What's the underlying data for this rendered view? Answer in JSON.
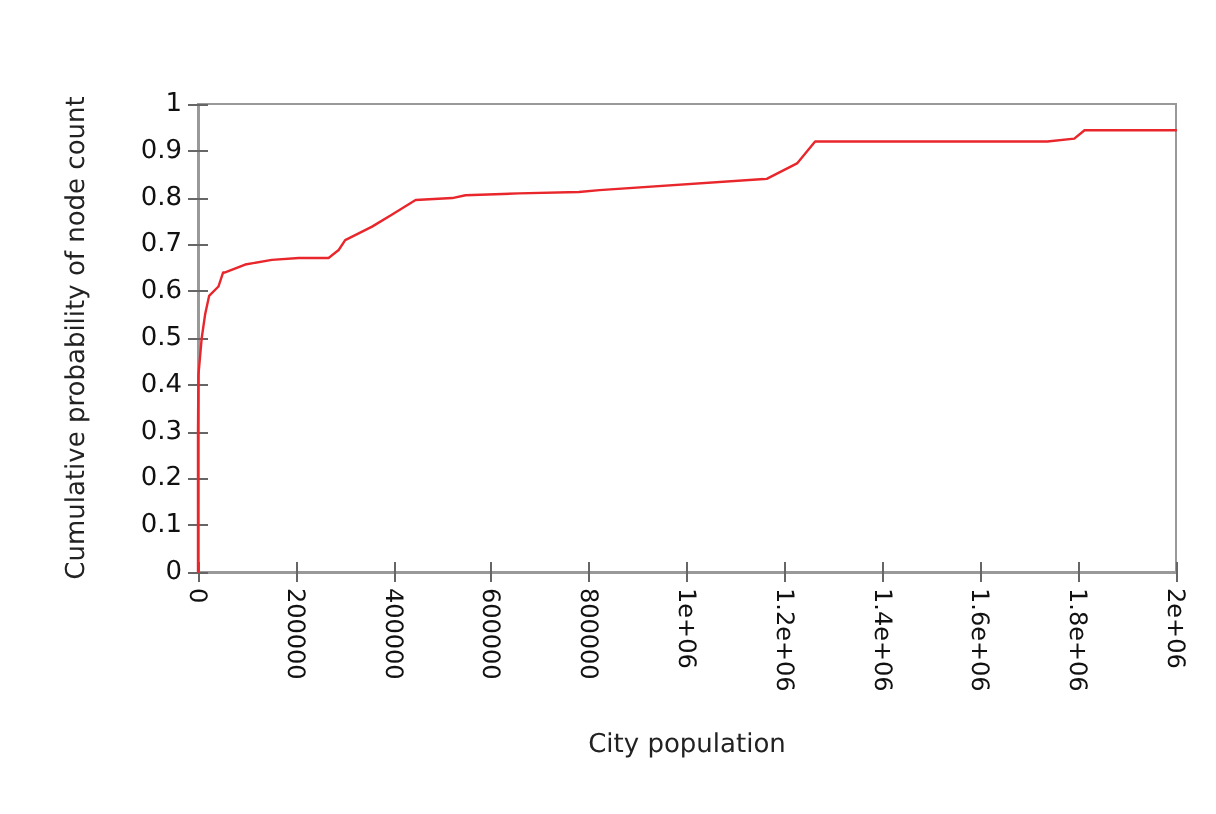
{
  "chart_data": {
    "type": "line",
    "xlabel": "City population",
    "ylabel": "Cumulative probability of node count",
    "x": [
      0,
      0,
      800,
      7600,
      14500,
      22700,
      41800,
      51400,
      55500,
      96500,
      151000,
      206000,
      267000,
      287700,
      301000,
      356000,
      397000,
      445000,
      520000,
      547000,
      656000,
      779000,
      821000,
      1163000,
      1225000,
      1262000,
      1737000,
      1792000,
      1813000,
      2000000
    ],
    "series": [
      {
        "color": "#e8262b",
        "values": [
          0,
          0.3,
          0.42,
          0.5,
          0.55,
          0.59,
          0.61,
          0.64,
          0.64,
          0.657,
          0.667,
          0.671,
          0.671,
          0.688,
          0.709,
          0.738,
          0.764,
          0.795,
          0.799,
          0.805,
          0.809,
          0.812,
          0.816,
          0.84,
          0.873,
          0.92,
          0.92,
          0.926,
          0.944,
          0.944
        ]
      }
    ],
    "xlim": [
      0,
      2000000
    ],
    "xticks": [
      0,
      200000,
      400000,
      600000,
      800000,
      {
        "value": 1000000,
        "label": "1e+06"
      },
      {
        "value": 1200000,
        "label": "1.2e+06"
      },
      {
        "value": 1400000,
        "label": "1.4e+06"
      },
      {
        "value": 1600000,
        "label": "1.6e+06"
      },
      {
        "value": 1800000,
        "label": "1.8e+06"
      },
      {
        "value": 2000000,
        "label": "2e+06"
      }
    ],
    "ylim": [
      0,
      1
    ],
    "yticks": [
      0,
      0.1,
      0.2,
      0.3,
      0.4,
      0.5,
      0.6,
      0.7,
      0.8,
      0.9,
      1
    ],
    "grid": false,
    "marker": "none",
    "line_style": "solid"
  }
}
